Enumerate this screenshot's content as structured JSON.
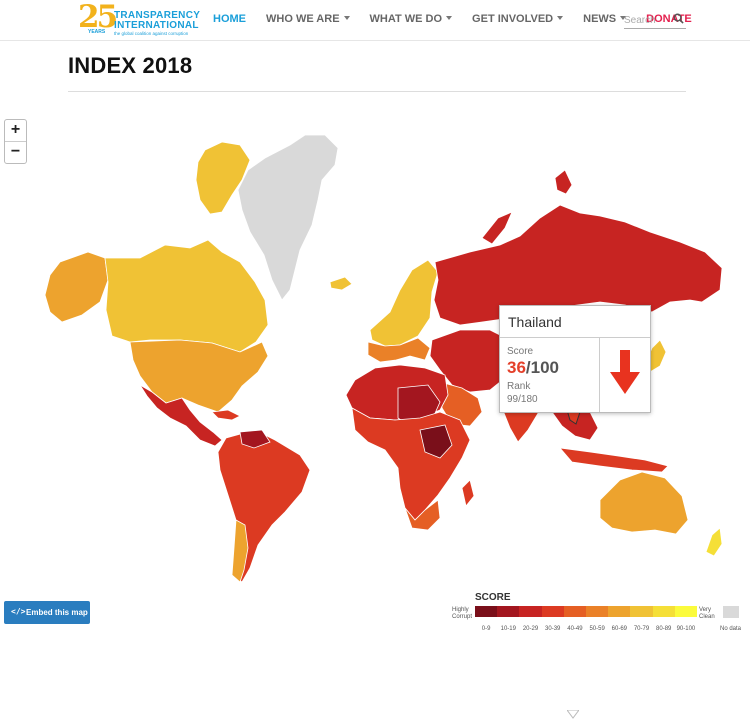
{
  "header": {
    "logo": {
      "number": "25",
      "years": "YEARS",
      "line1": "TRANSPARENCY",
      "line2": "INTERNATIONAL",
      "tagline": "the global coalition against corruption"
    },
    "nav": [
      "HOME",
      "WHO WE ARE",
      "WHAT WE DO",
      "GET INVOLVED",
      "NEWS",
      "DONATE"
    ],
    "search_placeholder": "Search"
  },
  "page_title": "INDEX 2018",
  "zoom": {
    "in": "+",
    "out": "−"
  },
  "tooltip": {
    "country": "Thailand",
    "score_label": "Score",
    "score": "36",
    "score_max": "/100",
    "rank_label": "Rank",
    "rank": "99/180",
    "trend": "down-arrow-icon"
  },
  "embed_label": "Embed this map",
  "legend": {
    "title": "SCORE",
    "low_label": "Highly Corrupt",
    "high_label": "Very Clean",
    "no_data": "No data",
    "ranges": [
      "0-9",
      "10-19",
      "20-29",
      "30-39",
      "40-49",
      "50-59",
      "60-69",
      "70-79",
      "80-89",
      "90-100"
    ],
    "colors": [
      "#7a0f1a",
      "#a3161f",
      "#c72422",
      "#dc3a22",
      "#e55f24",
      "#ea8128",
      "#eda32e",
      "#f0c235",
      "#f5df37",
      "#fbfb3c"
    ]
  },
  "colors": {
    "accent": "#1a9fd9",
    "donate": "#e4204e",
    "no_data": "#d9d9d9"
  }
}
